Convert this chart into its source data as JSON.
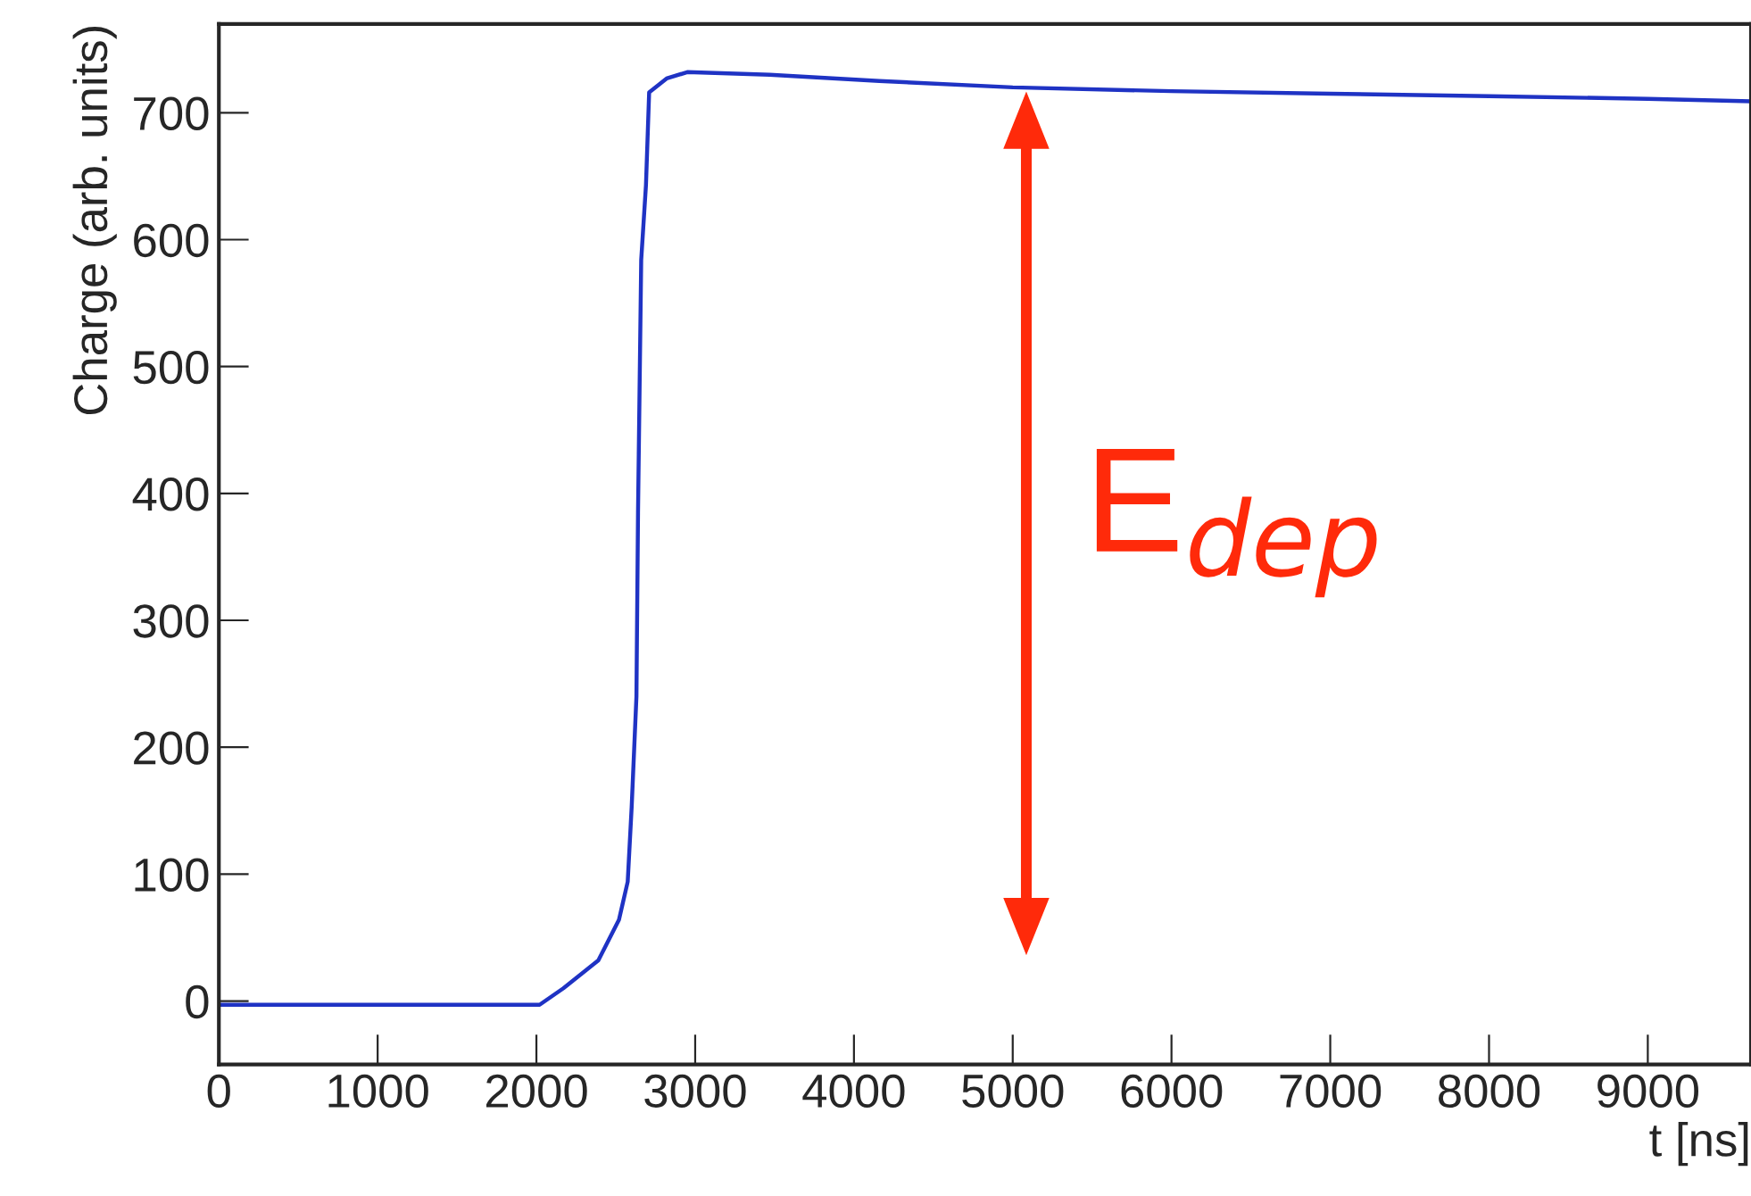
{
  "chart_data": {
    "type": "line",
    "xlabel": "t [ns]",
    "ylabel": "Charge (arb. units)",
    "series": [
      {
        "color": "#1f33c4",
        "x": [
          0,
          500,
          1000,
          1500,
          2020,
          2170,
          2390,
          2520,
          2575,
          2600,
          2630,
          2640,
          2660,
          2690,
          2710,
          2820,
          2950,
          3470,
          4160,
          5000,
          6000,
          7000,
          8000,
          9000,
          9650
        ],
        "values": [
          -3,
          -3,
          -3,
          -3,
          -3,
          10,
          32,
          64,
          94,
          153,
          240,
          385,
          584,
          643,
          716,
          727,
          732,
          730,
          725,
          720,
          717,
          715,
          713,
          711,
          709
        ]
      }
    ],
    "xlim": [
      0,
      9650
    ],
    "xticks": [
      0,
      1000,
      2000,
      3000,
      4000,
      5000,
      6000,
      7000,
      8000,
      9000
    ],
    "ylim": [
      -50,
      770
    ],
    "yticks": [
      0,
      100,
      200,
      300,
      400,
      500,
      600,
      700
    ],
    "grid": false,
    "legend": false,
    "annotations": [
      "E$_{dep}$"
    ]
  }
}
